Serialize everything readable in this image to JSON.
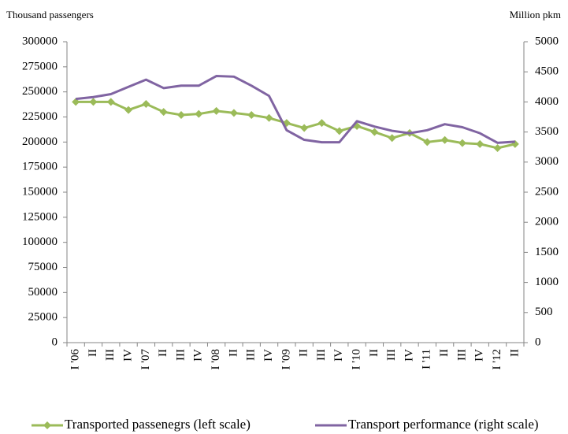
{
  "chart_data": {
    "type": "line",
    "y_label": "Thousand passengers",
    "y2_label": "Million pkm",
    "categories": [
      "I '06",
      "II",
      "III",
      "IV",
      "I '07",
      "II",
      "III",
      "IV",
      "I '08",
      "II",
      "III",
      "IV",
      "I '09",
      "II",
      "III",
      "IV",
      "I '10",
      "II",
      "III",
      "IV",
      "I '11",
      "II",
      "III",
      "IV",
      "I '12",
      "II"
    ],
    "series": [
      {
        "name": "Transported passenegrs (left scale)",
        "color": "#9bbb59",
        "marker": "diamond",
        "values": [
          240000,
          240000,
          240000,
          232000,
          238000,
          230000,
          227000,
          228000,
          231000,
          229000,
          227000,
          224000,
          219000,
          214000,
          219000,
          211000,
          216000,
          210000,
          204000,
          209000,
          200000,
          202000,
          199000,
          198000,
          194000,
          198000
        ]
      },
      {
        "name": "Transport performance (right scale)",
        "color": "#8064a2",
        "axis": "y2",
        "values": [
          4050,
          4080,
          4130,
          4250,
          4370,
          4230,
          4270,
          4270,
          4430,
          4420,
          4270,
          4100,
          3530,
          3370,
          3330,
          3330,
          3680,
          3590,
          3520,
          3480,
          3530,
          3630,
          3580,
          3480,
          3320,
          3340
        ]
      }
    ],
    "ylim": [
      0,
      300000
    ],
    "yticks": [
      0,
      25000,
      50000,
      75000,
      100000,
      125000,
      150000,
      175000,
      200000,
      225000,
      250000,
      275000,
      300000
    ],
    "y2lim": [
      0,
      5000
    ],
    "y2ticks": [
      0,
      500,
      1000,
      1500,
      2000,
      2500,
      3000,
      3500,
      4000,
      4500,
      5000
    ],
    "grid": false,
    "legend": "bottom"
  }
}
